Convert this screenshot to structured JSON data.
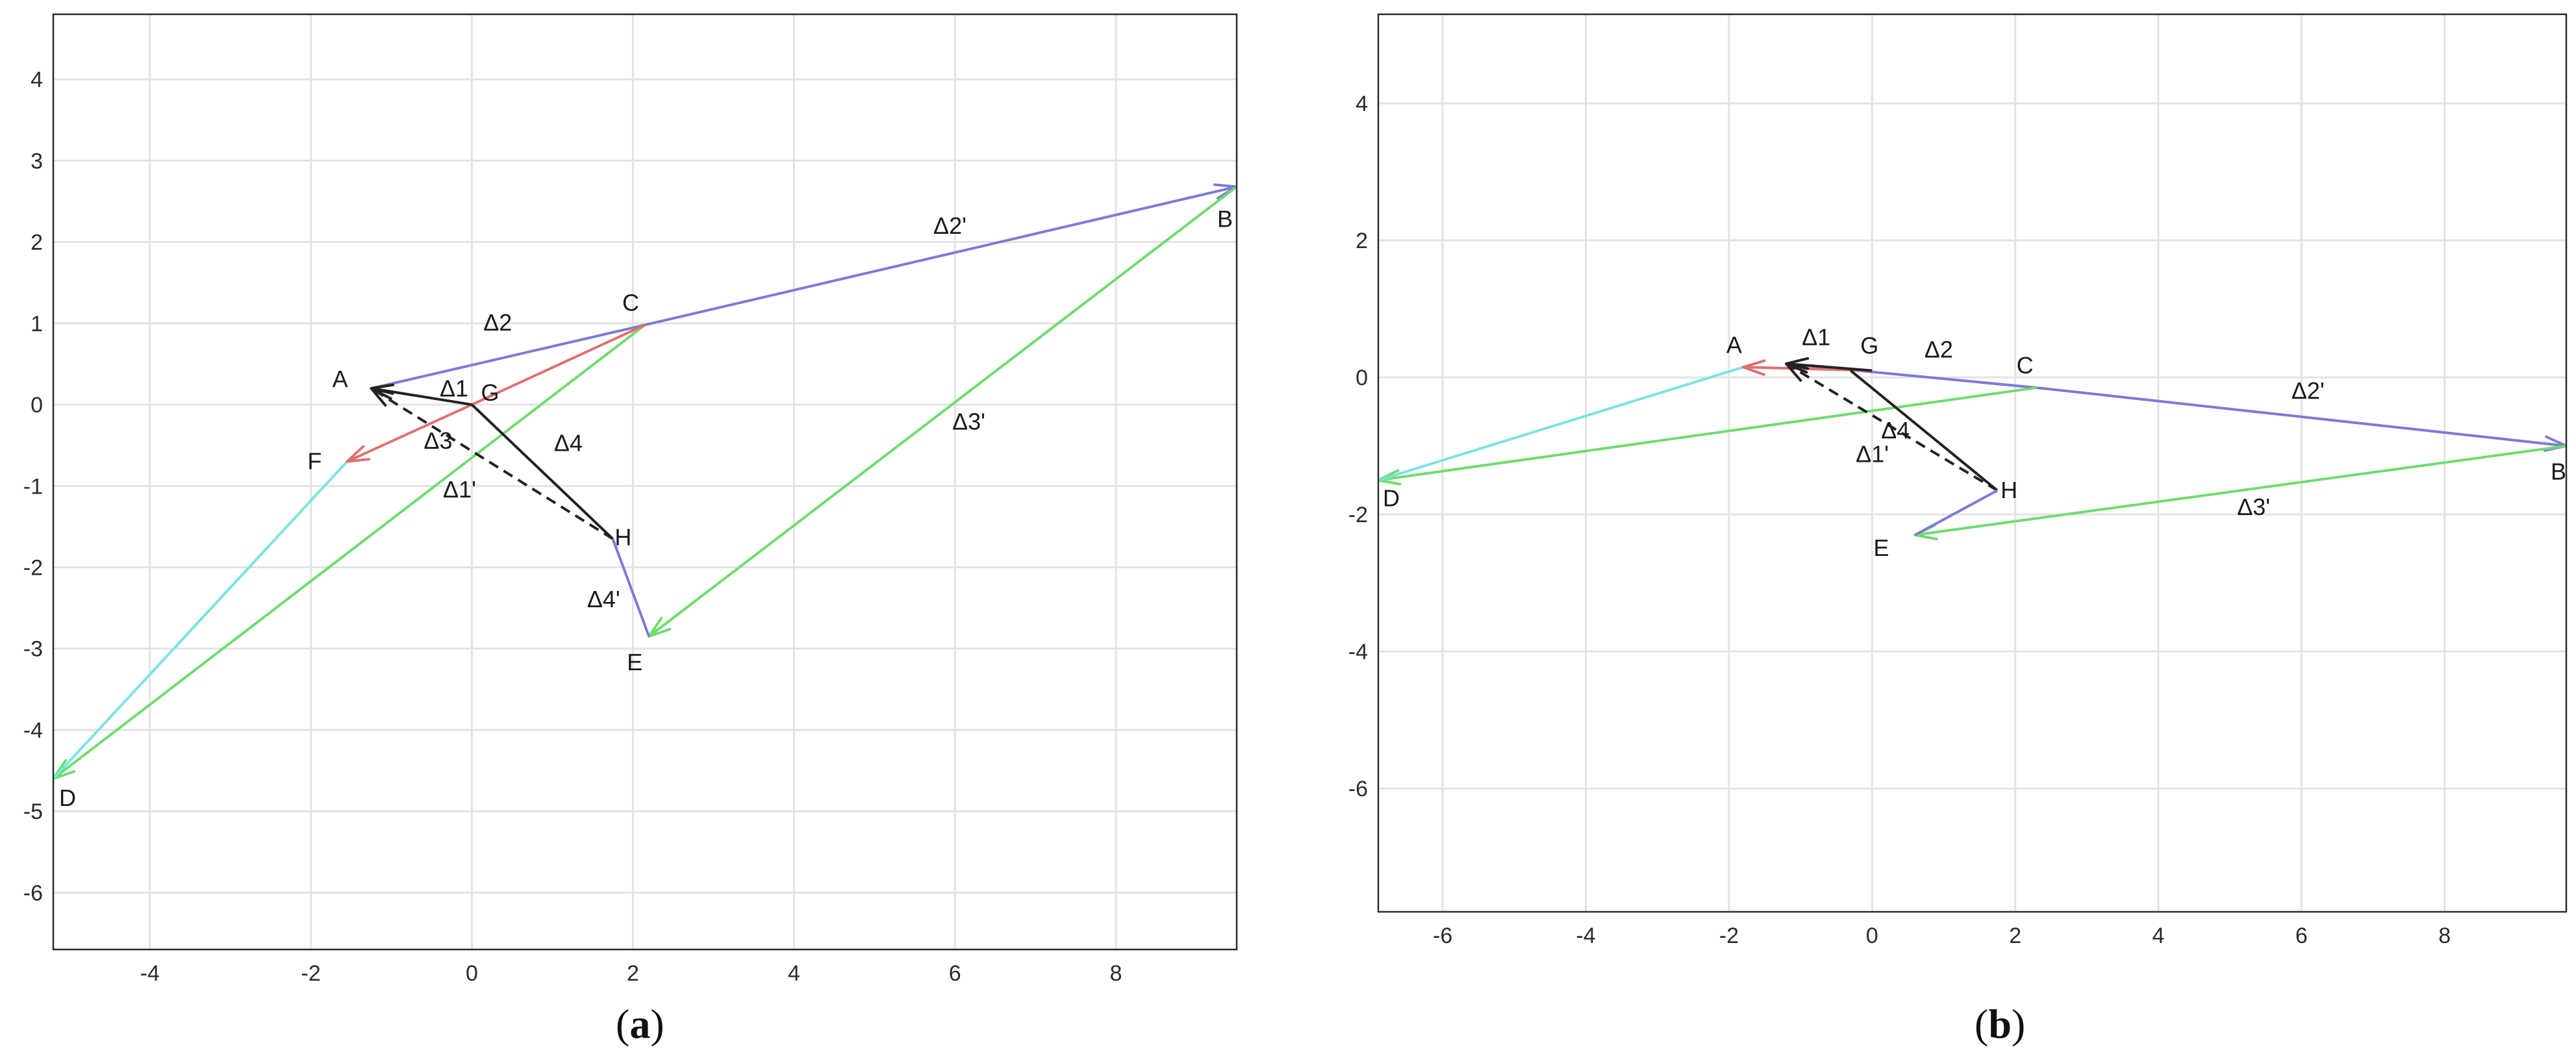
{
  "captions": [
    {
      "open": "(",
      "letter": "a",
      "close": ")"
    },
    {
      "open": "(",
      "letter": "b",
      "close": ")"
    }
  ],
  "chart_data": [
    {
      "type": "line",
      "panel": "a",
      "title": "",
      "xlabel": "",
      "ylabel": "",
      "xlim": [
        -5.2,
        9.5
      ],
      "ylim": [
        -6.7,
        4.8
      ],
      "xticks": [
        -4,
        -2,
        0,
        2,
        4,
        6,
        8
      ],
      "yticks": [
        -6,
        -5,
        -4,
        -3,
        -2,
        -1,
        0,
        1,
        2,
        3,
        4
      ],
      "grid": true,
      "points": [
        {
          "label": "A",
          "x": -1.25,
          "y": 0.2
        },
        {
          "label": "B",
          "x": 9.5,
          "y": 2.68
        },
        {
          "label": "C",
          "x": 2.15,
          "y": 0.98
        },
        {
          "label": "D",
          "x": -5.2,
          "y": -4.6
        },
        {
          "label": "E",
          "x": 2.2,
          "y": -2.85
        },
        {
          "label": "F",
          "x": -1.55,
          "y": -0.7
        },
        {
          "label": "G",
          "x": 0.0,
          "y": 0.0
        },
        {
          "label": "H",
          "x": 1.75,
          "y": -1.65
        }
      ],
      "vectors": [
        {
          "label": "Δ2",
          "from": [
            -1.25,
            0.2
          ],
          "to": [
            2.15,
            0.98
          ],
          "color": "#7b7bd6",
          "style": "solid",
          "arrow": false
        },
        {
          "label": "Δ2'",
          "from": [
            2.15,
            0.98
          ],
          "to": [
            9.5,
            2.68
          ],
          "color": "#7b7bd6",
          "style": "solid",
          "arrow": true
        },
        {
          "label": "Δ3'",
          "from": [
            9.5,
            2.68
          ],
          "to": [
            2.2,
            -2.85
          ],
          "color": "#6fdc6f",
          "style": "solid",
          "arrow": true
        },
        {
          "label": "",
          "from": [
            2.15,
            0.98
          ],
          "to": [
            -5.2,
            -4.6
          ],
          "color": "#6fdc6f",
          "style": "solid",
          "arrow": true
        },
        {
          "label": "",
          "from": [
            -1.55,
            -0.7
          ],
          "to": [
            -5.2,
            -4.6
          ],
          "color": "#7be3e3",
          "style": "solid",
          "arrow": false
        },
        {
          "label": "",
          "from": [
            2.15,
            0.98
          ],
          "to": [
            0.0,
            0.0
          ],
          "color": "#e07070",
          "style": "solid",
          "arrow": false
        },
        {
          "label": "Δ3",
          "from": [
            0.0,
            0.0
          ],
          "to": [
            -1.55,
            -0.7
          ],
          "color": "#e07070",
          "style": "solid",
          "arrow": true
        },
        {
          "label": "Δ1",
          "from": [
            0.0,
            0.0
          ],
          "to": [
            -1.25,
            0.2
          ],
          "color": "#222222",
          "style": "solid",
          "arrow": true
        },
        {
          "label": "Δ4",
          "from": [
            1.75,
            -1.65
          ],
          "to": [
            0.0,
            0.0
          ],
          "color": "#222222",
          "style": "solid",
          "arrow": false
        },
        {
          "label": "Δ1'",
          "from": [
            1.75,
            -1.65
          ],
          "to": [
            -1.25,
            0.2
          ],
          "color": "#222222",
          "style": "dashed",
          "arrow": true
        },
        {
          "label": "Δ4'",
          "from": [
            1.75,
            -1.65
          ],
          "to": [
            2.2,
            -2.85
          ],
          "color": "#7b7bd6",
          "style": "solid",
          "arrow": false
        }
      ]
    },
    {
      "type": "line",
      "panel": "b",
      "title": "",
      "xlabel": "",
      "ylabel": "",
      "xlim": [
        -6.9,
        9.7
      ],
      "ylim": [
        -7.8,
        5.3
      ],
      "xticks": [
        -6,
        -4,
        -2,
        0,
        2,
        4,
        6,
        8
      ],
      "yticks": [
        -6,
        -4,
        -2,
        0,
        2,
        4
      ],
      "grid": true,
      "points": [
        {
          "label": "A",
          "x": -1.8,
          "y": 0.15
        },
        {
          "label": "B",
          "x": 9.7,
          "y": -1.0
        },
        {
          "label": "C",
          "x": 2.3,
          "y": -0.15
        },
        {
          "label": "D",
          "x": -6.9,
          "y": -1.5
        },
        {
          "label": "E",
          "x": 0.6,
          "y": -2.3
        },
        {
          "label": "G",
          "x": 0.0,
          "y": 0.1
        },
        {
          "label": "H",
          "x": 1.75,
          "y": -1.65
        }
      ],
      "vectors": [
        {
          "label": "Δ2",
          "from": [
            -1.2,
            0.2
          ],
          "to": [
            2.3,
            -0.15
          ],
          "color": "#7b7bd6",
          "style": "solid",
          "arrow": false
        },
        {
          "label": "Δ2'",
          "from": [
            2.3,
            -0.15
          ],
          "to": [
            9.7,
            -1.0
          ],
          "color": "#7b7bd6",
          "style": "solid",
          "arrow": true
        },
        {
          "label": "Δ3'",
          "from": [
            9.7,
            -1.0
          ],
          "to": [
            0.6,
            -2.3
          ],
          "color": "#6fdc6f",
          "style": "solid",
          "arrow": true
        },
        {
          "label": "",
          "from": [
            2.3,
            -0.15
          ],
          "to": [
            -6.9,
            -1.5
          ],
          "color": "#6fdc6f",
          "style": "solid",
          "arrow": true
        },
        {
          "label": "",
          "from": [
            -1.8,
            0.15
          ],
          "to": [
            -6.9,
            -1.5
          ],
          "color": "#7be3e3",
          "style": "solid",
          "arrow": false
        },
        {
          "label": "",
          "from": [
            0.0,
            0.1
          ],
          "to": [
            -1.8,
            0.15
          ],
          "color": "#e07070",
          "style": "solid",
          "arrow": true
        },
        {
          "label": "Δ1",
          "from": [
            0.0,
            0.1
          ],
          "to": [
            -1.2,
            0.2
          ],
          "color": "#222222",
          "style": "solid",
          "arrow": true
        },
        {
          "label": "Δ4",
          "from": [
            1.75,
            -1.65
          ],
          "to": [
            -0.3,
            0.1
          ],
          "color": "#222222",
          "style": "solid",
          "arrow": false
        },
        {
          "label": "Δ1'",
          "from": [
            1.75,
            -1.65
          ],
          "to": [
            -1.2,
            0.2
          ],
          "color": "#222222",
          "style": "dashed",
          "arrow": true
        },
        {
          "label": "",
          "from": [
            1.75,
            -1.65
          ],
          "to": [
            0.6,
            -2.3
          ],
          "color": "#7b7bd6",
          "style": "solid",
          "arrow": false
        }
      ]
    }
  ]
}
